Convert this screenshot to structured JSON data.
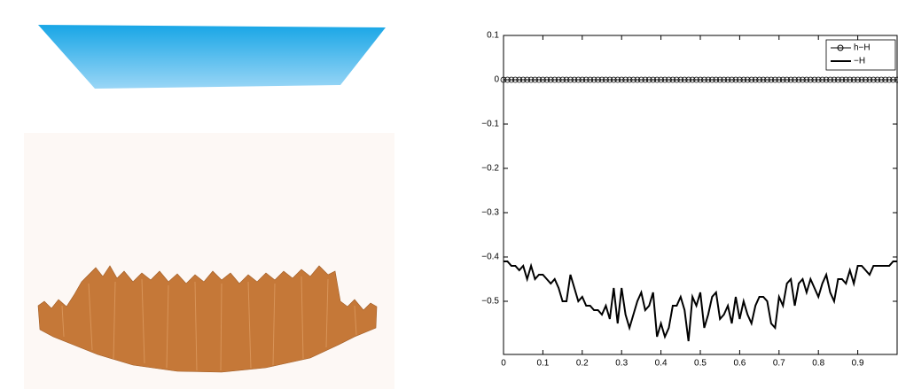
{
  "chart_data": {
    "type": "line",
    "x": [
      0,
      0.01,
      0.02,
      0.03,
      0.04,
      0.05,
      0.06,
      0.07,
      0.08,
      0.09,
      0.1,
      0.11,
      0.12,
      0.13,
      0.14,
      0.15,
      0.16,
      0.17,
      0.18,
      0.19,
      0.2,
      0.21,
      0.22,
      0.23,
      0.24,
      0.25,
      0.26,
      0.27,
      0.28,
      0.29,
      0.3,
      0.31,
      0.32,
      0.33,
      0.34,
      0.35,
      0.36,
      0.37,
      0.38,
      0.39,
      0.4,
      0.41,
      0.42,
      0.43,
      0.44,
      0.45,
      0.46,
      0.47,
      0.48,
      0.49,
      0.5,
      0.51,
      0.52,
      0.53,
      0.54,
      0.55,
      0.56,
      0.57,
      0.58,
      0.59,
      0.6,
      0.61,
      0.62,
      0.63,
      0.64,
      0.65,
      0.66,
      0.67,
      0.68,
      0.69,
      0.7,
      0.71,
      0.72,
      0.73,
      0.74,
      0.75,
      0.76,
      0.77,
      0.78,
      0.79,
      0.8,
      0.81,
      0.82,
      0.83,
      0.84,
      0.85,
      0.86,
      0.87,
      0.88,
      0.89,
      0.9,
      0.91,
      0.92,
      0.93,
      0.94,
      0.95,
      0.96,
      0.97,
      0.98,
      0.99,
      1
    ],
    "series": [
      {
        "name": "h−H",
        "color": "#000000",
        "marker": "circle",
        "values": [
          0,
          0,
          0,
          0,
          0,
          0,
          0,
          0,
          0,
          0,
          0,
          0,
          0,
          0,
          0,
          0,
          0,
          0,
          0,
          0,
          0,
          0,
          0,
          0,
          0,
          0,
          0,
          0,
          0,
          0,
          0,
          0,
          0,
          0,
          0,
          0,
          0,
          0,
          0,
          0,
          0,
          0,
          0,
          0,
          0,
          0,
          0,
          0,
          0,
          0,
          0,
          0,
          0,
          0,
          0,
          0,
          0,
          0,
          0,
          0,
          0,
          0,
          0,
          0,
          0,
          0,
          0,
          0,
          0,
          0,
          0,
          0,
          0,
          0,
          0,
          0,
          0,
          0,
          0,
          0,
          0,
          0,
          0,
          0,
          0,
          0,
          0,
          0,
          0,
          0,
          0,
          0,
          0,
          0,
          0,
          0,
          0,
          0,
          0,
          0,
          0
        ]
      },
      {
        "name": "−H",
        "color": "#000000",
        "values": [
          -0.41,
          -0.41,
          -0.42,
          -0.42,
          -0.43,
          -0.42,
          -0.45,
          -0.42,
          -0.45,
          -0.44,
          -0.44,
          -0.45,
          -0.46,
          -0.45,
          -0.47,
          -0.5,
          -0.5,
          -0.44,
          -0.47,
          -0.5,
          -0.49,
          -0.51,
          -0.51,
          -0.52,
          -0.52,
          -0.53,
          -0.51,
          -0.54,
          -0.47,
          -0.55,
          -0.47,
          -0.53,
          -0.56,
          -0.53,
          -0.5,
          -0.48,
          -0.52,
          -0.51,
          -0.48,
          -0.58,
          -0.55,
          -0.58,
          -0.56,
          -0.51,
          -0.51,
          -0.49,
          -0.52,
          -0.59,
          -0.49,
          -0.51,
          -0.48,
          -0.56,
          -0.53,
          -0.49,
          -0.48,
          -0.54,
          -0.53,
          -0.51,
          -0.55,
          -0.49,
          -0.54,
          -0.5,
          -0.53,
          -0.55,
          -0.51,
          -0.49,
          -0.49,
          -0.5,
          -0.55,
          -0.56,
          -0.49,
          -0.51,
          -0.46,
          -0.45,
          -0.51,
          -0.46,
          -0.45,
          -0.48,
          -0.45,
          -0.47,
          -0.49,
          -0.46,
          -0.44,
          -0.48,
          -0.5,
          -0.45,
          -0.45,
          -0.46,
          -0.43,
          -0.46,
          -0.42,
          -0.42,
          -0.43,
          -0.44,
          -0.42,
          -0.42,
          -0.42,
          -0.42,
          -0.42,
          -0.41,
          -0.41
        ]
      }
    ],
    "xlim": [
      0,
      1
    ],
    "xticks": [
      0,
      0.1,
      0.2,
      0.3,
      0.4,
      0.5,
      0.6,
      0.7,
      0.8,
      0.9
    ],
    "ylim": [
      -0.62,
      0.1
    ],
    "yticks": [
      0.1,
      0,
      {
        "value": -0.1,
        "label": "−0.1"
      },
      {
        "value": -0.2,
        "label": "−0.2"
      },
      {
        "value": -0.3,
        "label": "−0.3"
      },
      {
        "value": -0.4,
        "label": "−0.4"
      },
      {
        "value": -0.5,
        "label": "−0.5"
      }
    ],
    "legend": "upper right",
    "grid": false
  }
}
